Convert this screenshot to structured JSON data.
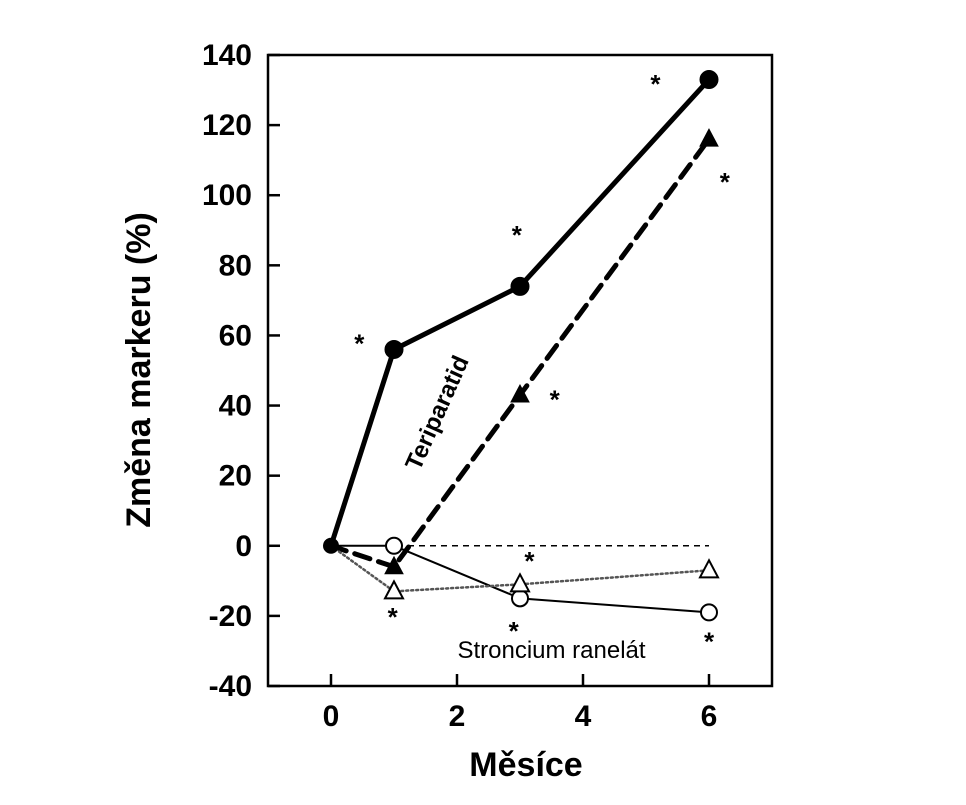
{
  "chart_data": {
    "type": "line",
    "xlabel": "Měsíce",
    "ylabel": "Změna markeru (%)",
    "xlim": [
      -1,
      7
    ],
    "ylim": [
      -40,
      140
    ],
    "xticks": [
      0,
      2,
      4,
      6
    ],
    "yticks": [
      -40,
      -20,
      0,
      20,
      40,
      60,
      80,
      100,
      120,
      140
    ],
    "grid": false,
    "series": [
      {
        "id": "teriparatid_solid",
        "x": [
          0,
          1,
          3,
          6
        ],
        "y": [
          0,
          56,
          74,
          133
        ],
        "line": "solid-thick",
        "marker": "circle-filled",
        "color": "#000000"
      },
      {
        "id": "teriparatid_dashed",
        "x": [
          0,
          1,
          3,
          6
        ],
        "y": [
          0,
          -6,
          43,
          116
        ],
        "line": "dashed-thick",
        "marker": "triangle-filled",
        "color": "#000000"
      },
      {
        "id": "stroncium_solid",
        "x": [
          0,
          1,
          3,
          6
        ],
        "y": [
          0,
          0,
          -15,
          -19
        ],
        "line": "solid-thin",
        "marker": "circle-open",
        "color": "#000000"
      },
      {
        "id": "stroncium_dotted",
        "x": [
          0,
          1,
          3,
          6
        ],
        "y": [
          0,
          -13,
          -11,
          -7
        ],
        "line": "dotted-thin",
        "marker": "triangle-open",
        "color": "#000000"
      }
    ],
    "reference_line": {
      "y": 0,
      "x_from": 0,
      "x_to": 6,
      "style": "dashed-thin"
    },
    "annotations": [
      {
        "text": "Teriparatid",
        "x": 1.8,
        "y": 37,
        "rotation": -66,
        "bold": true
      },
      {
        "text": "Stroncium ranelát",
        "x": 3.5,
        "y": -32,
        "rotation": 0,
        "bold": false
      }
    ],
    "significance_marks": [
      {
        "text": "*",
        "x": 0.45,
        "y": 58
      },
      {
        "text": "*",
        "x": 0.98,
        "y": -20
      },
      {
        "text": "*",
        "x": 2.95,
        "y": 89
      },
      {
        "text": "*",
        "x": 3.55,
        "y": 42
      },
      {
        "text": "*",
        "x": 3.15,
        "y": -4
      },
      {
        "text": "*",
        "x": 2.9,
        "y": -24
      },
      {
        "text": "*",
        "x": 5.15,
        "y": 132
      },
      {
        "text": "*",
        "x": 6.25,
        "y": 104
      },
      {
        "text": "*",
        "x": 6.0,
        "y": -27
      }
    ]
  }
}
